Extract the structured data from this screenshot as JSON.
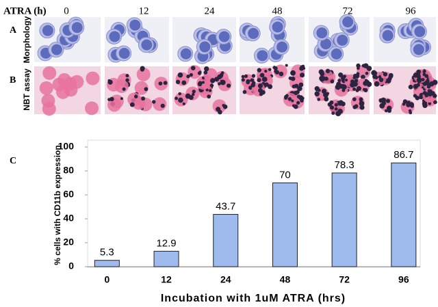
{
  "figure": {
    "header": "ATRA (h)",
    "time_labels": [
      "0",
      "12",
      "24",
      "48",
      "72",
      "96"
    ],
    "panel_a": {
      "letter": "A",
      "label": "Morphology"
    },
    "panel_b": {
      "letter": "B",
      "label": "NBT assay"
    },
    "panel_c": {
      "letter": "C"
    }
  },
  "chart_data": {
    "type": "bar",
    "categories": [
      "0",
      "12",
      "24",
      "48",
      "72",
      "96"
    ],
    "values": [
      5.3,
      12.9,
      43.7,
      70,
      78.3,
      86.7
    ],
    "color": "#9fbbee",
    "ylim": [
      0,
      100
    ],
    "yticks": [
      0,
      20,
      40,
      60,
      80,
      100
    ],
    "y_label": "% cells with CD11b expression",
    "x_label": "Incubation with 1uM ATRA (hrs)",
    "grid": false
  }
}
